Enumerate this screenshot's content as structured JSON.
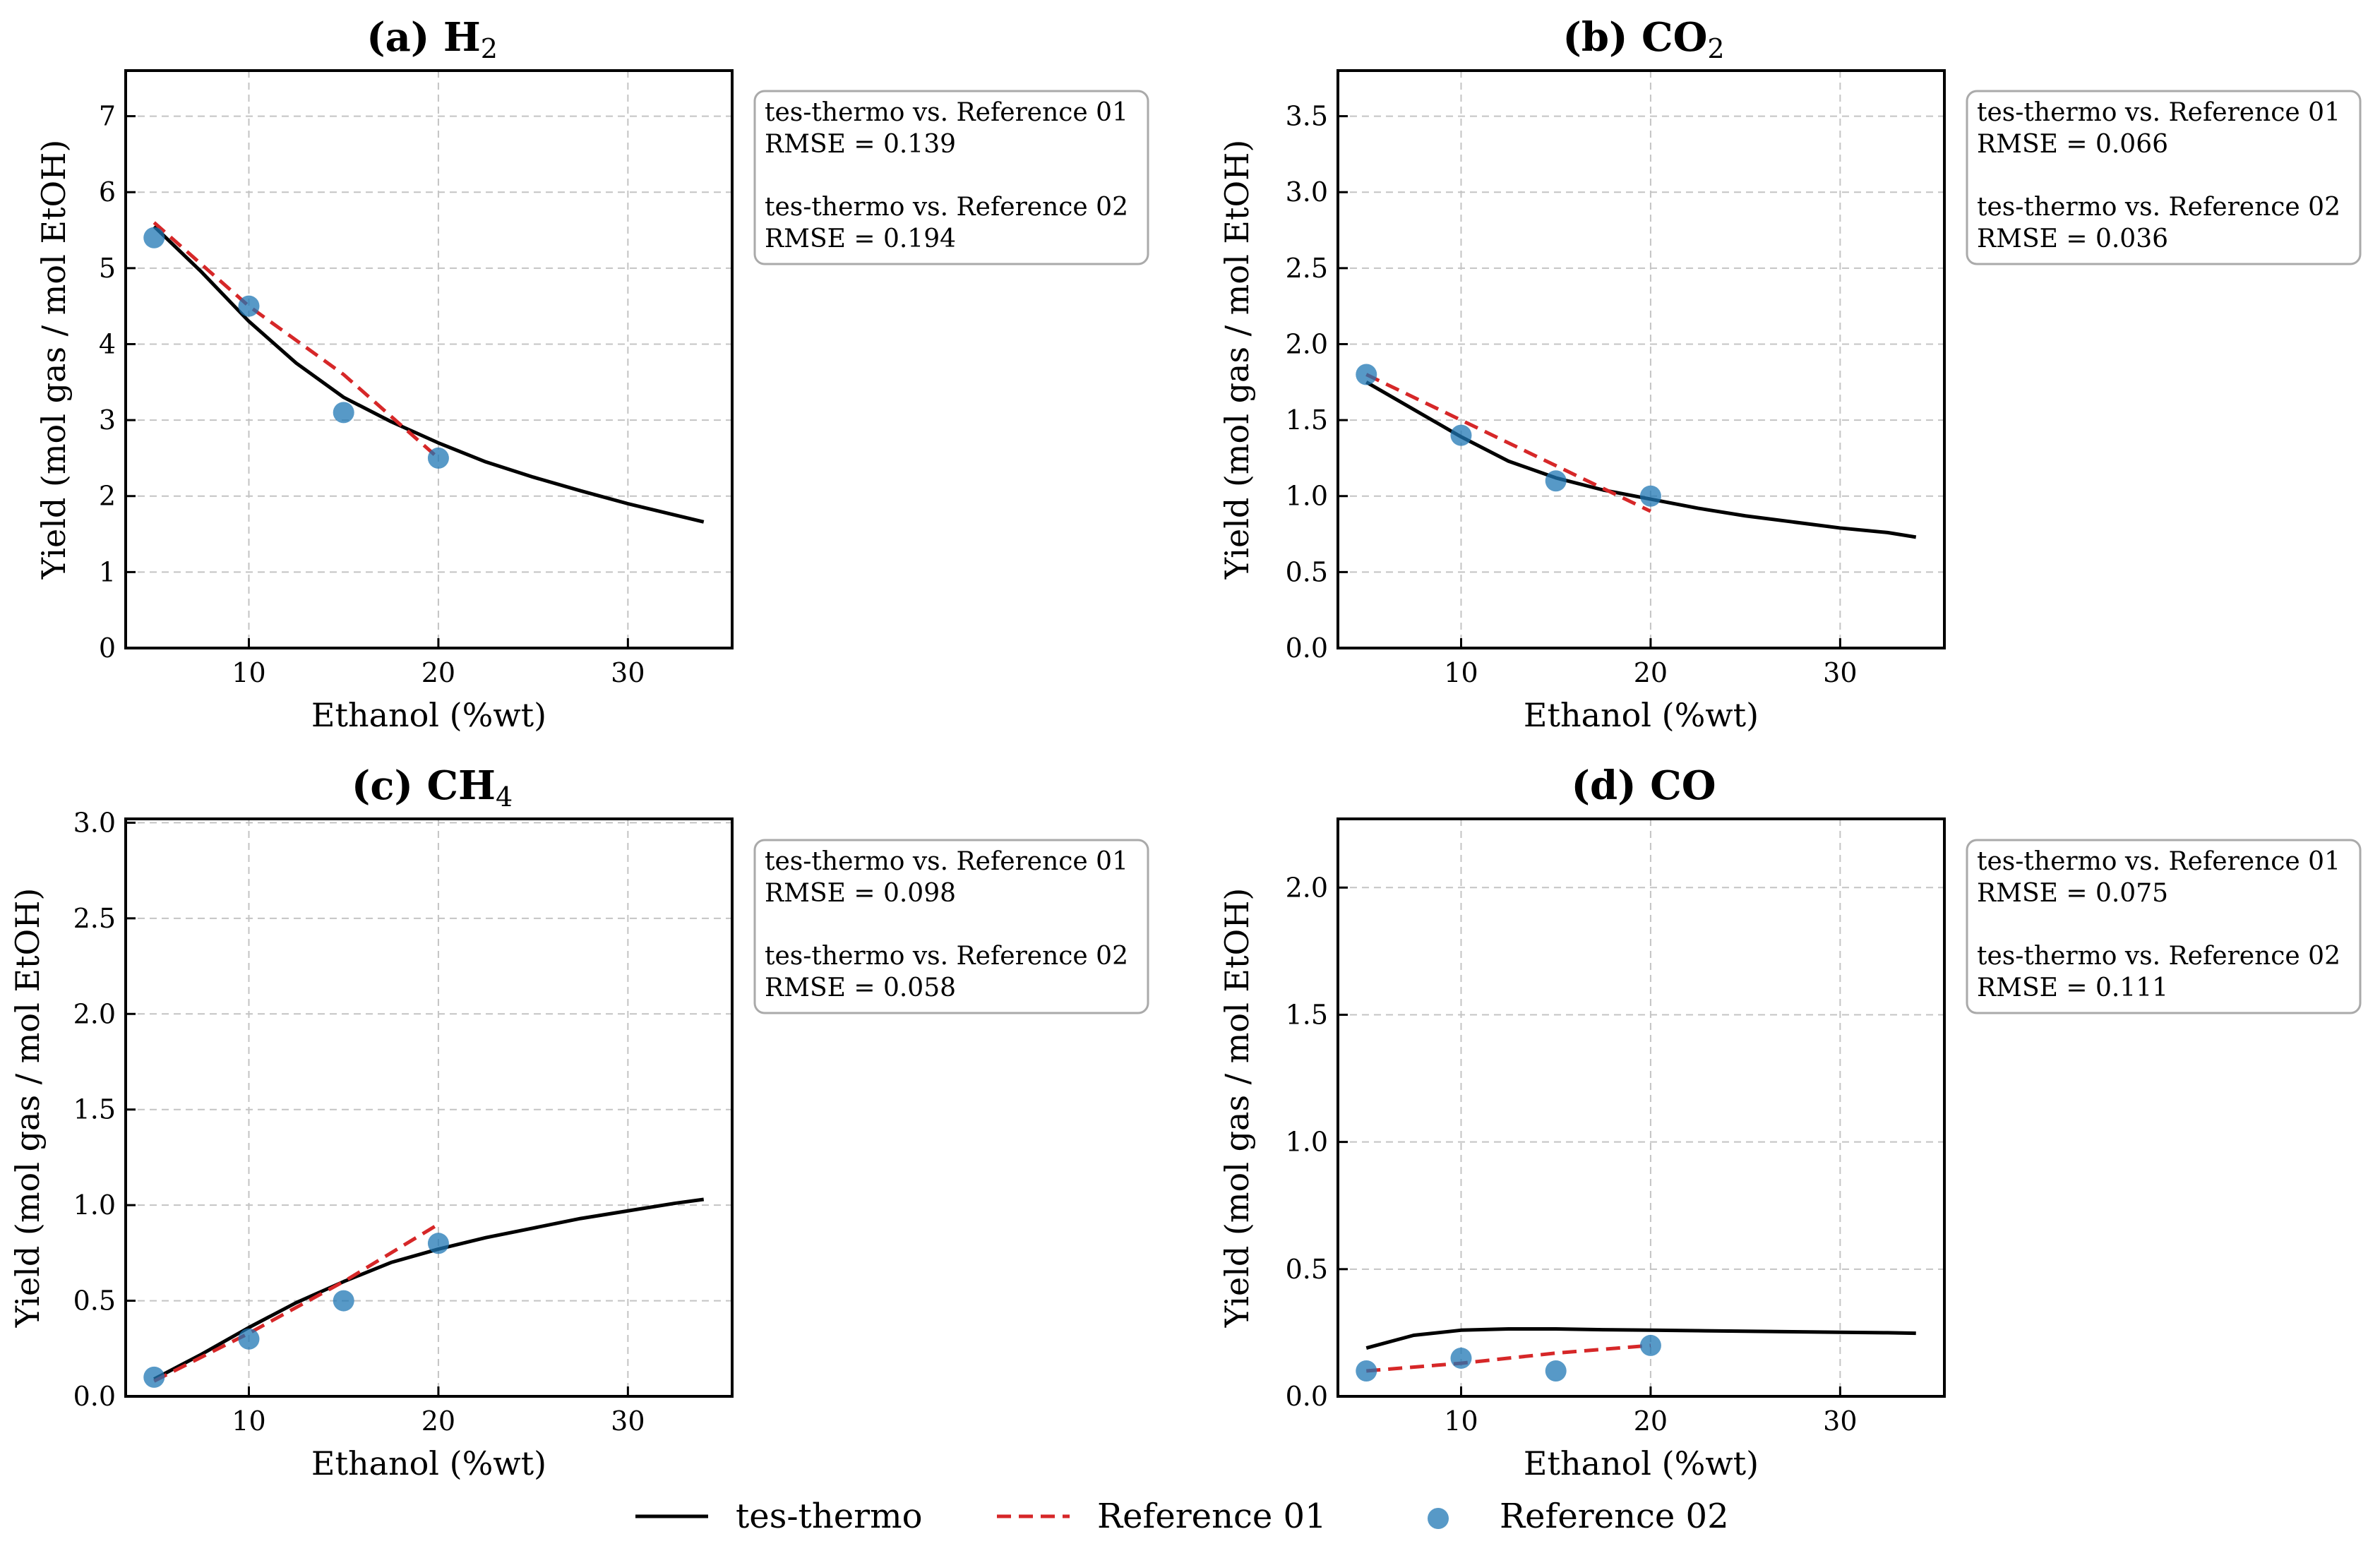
{
  "chart_data": [
    {
      "type": "line",
      "title": "(a) H",
      "title_sub": "2",
      "xlabel": "Ethanol (%wt)",
      "ylabel": "Yield (mol gas / mol EtOH)",
      "xlim": [
        3.5,
        35.5
      ],
      "ylim": [
        0,
        7.6
      ],
      "xticks": [
        10,
        20,
        30
      ],
      "yticks": [
        0,
        1,
        2,
        3,
        4,
        5,
        6,
        7
      ],
      "grid": true,
      "series": [
        {
          "name": "tes-thermo",
          "x": [
            5,
            7.5,
            10,
            12.5,
            15,
            17.5,
            20,
            22.5,
            25,
            27.5,
            30,
            32.5,
            34
          ],
          "y": [
            5.55,
            4.95,
            4.3,
            3.75,
            3.3,
            2.98,
            2.7,
            2.45,
            2.25,
            2.07,
            1.9,
            1.75,
            1.66
          ]
        },
        {
          "name": "Reference 01",
          "x": [
            5,
            10,
            15,
            20
          ],
          "y": [
            5.6,
            4.5,
            3.6,
            2.5
          ]
        },
        {
          "name": "Reference 02",
          "x": [
            5,
            10,
            15,
            20
          ],
          "y": [
            5.4,
            4.5,
            3.1,
            2.5
          ]
        }
      ],
      "annotation": [
        "tes-thermo vs. Reference 01",
        "RMSE = 0.139",
        "tes-thermo vs. Reference 02",
        "RMSE = 0.194"
      ]
    },
    {
      "type": "line",
      "title": "(b) CO",
      "title_sub": "2",
      "xlabel": "Ethanol (%wt)",
      "ylabel": "Yield (mol gas / mol EtOH)",
      "xlim": [
        3.5,
        35.5
      ],
      "ylim": [
        0,
        3.8
      ],
      "xticks": [
        10,
        20,
        30
      ],
      "yticks": [
        "0.0",
        "0.5",
        "1.0",
        "1.5",
        "2.0",
        "2.5",
        "3.0",
        "3.5"
      ],
      "grid": true,
      "series": [
        {
          "name": "tes-thermo",
          "x": [
            5,
            7.5,
            10,
            12.5,
            15,
            17.5,
            20,
            22.5,
            25,
            27.5,
            30,
            32.5,
            34
          ],
          "y": [
            1.75,
            1.57,
            1.39,
            1.23,
            1.12,
            1.04,
            0.98,
            0.92,
            0.87,
            0.83,
            0.79,
            0.76,
            0.73
          ]
        },
        {
          "name": "Reference 01",
          "x": [
            5,
            10,
            15,
            20
          ],
          "y": [
            1.8,
            1.5,
            1.2,
            0.9
          ]
        },
        {
          "name": "Reference 02",
          "x": [
            5,
            10,
            15,
            20
          ],
          "y": [
            1.8,
            1.4,
            1.1,
            1.0
          ]
        }
      ],
      "annotation": [
        "tes-thermo vs. Reference 01",
        "RMSE = 0.066",
        "tes-thermo vs. Reference 02",
        "RMSE = 0.036"
      ]
    },
    {
      "type": "line",
      "title": "(c) CH",
      "title_sub": "4",
      "xlabel": "Ethanol (%wt)",
      "ylabel": "Yield (mol gas / mol EtOH)",
      "xlim": [
        3.5,
        35.5
      ],
      "ylim": [
        0,
        3.02
      ],
      "xticks": [
        10,
        20,
        30
      ],
      "yticks": [
        "0.0",
        "0.5",
        "1.0",
        "1.5",
        "2.0",
        "2.5",
        "3.0"
      ],
      "grid": true,
      "series": [
        {
          "name": "tes-thermo",
          "x": [
            5,
            7.5,
            10,
            12.5,
            15,
            17.5,
            20,
            22.5,
            25,
            27.5,
            30,
            32.5,
            34
          ],
          "y": [
            0.09,
            0.22,
            0.36,
            0.49,
            0.6,
            0.7,
            0.77,
            0.83,
            0.88,
            0.93,
            0.97,
            1.01,
            1.03
          ]
        },
        {
          "name": "Reference 01",
          "x": [
            5,
            10,
            15,
            20
          ],
          "y": [
            0.08,
            0.33,
            0.6,
            0.9
          ]
        },
        {
          "name": "Reference 02",
          "x": [
            5,
            10,
            15,
            20
          ],
          "y": [
            0.1,
            0.3,
            0.5,
            0.8
          ]
        }
      ],
      "annotation": [
        "tes-thermo vs. Reference 01",
        "RMSE = 0.098",
        "tes-thermo vs. Reference 02",
        "RMSE = 0.058"
      ]
    },
    {
      "type": "line",
      "title": "(d) CO",
      "title_sub": "",
      "xlabel": "Ethanol (%wt)",
      "ylabel": "Yield (mol gas / mol EtOH)",
      "xlim": [
        3.5,
        35.5
      ],
      "ylim": [
        0,
        2.27
      ],
      "xticks": [
        10,
        20,
        30
      ],
      "yticks": [
        "0.0",
        "0.5",
        "1.0",
        "1.5",
        "2.0"
      ],
      "grid": true,
      "series": [
        {
          "name": "tes-thermo",
          "x": [
            5,
            7.5,
            10,
            12.5,
            15,
            17.5,
            20,
            22.5,
            25,
            27.5,
            30,
            32.5,
            34
          ],
          "y": [
            0.19,
            0.24,
            0.26,
            0.265,
            0.265,
            0.262,
            0.26,
            0.258,
            0.256,
            0.254,
            0.252,
            0.25,
            0.248
          ]
        },
        {
          "name": "Reference 01",
          "x": [
            5,
            10,
            15,
            20
          ],
          "y": [
            0.1,
            0.13,
            0.17,
            0.2
          ]
        },
        {
          "name": "Reference 02",
          "x": [
            5,
            10,
            15,
            20
          ],
          "y": [
            0.1,
            0.15,
            0.1,
            0.2
          ]
        }
      ],
      "annotation": [
        "tes-thermo vs. Reference 01",
        "RMSE = 0.075",
        "tes-thermo vs. Reference 02",
        "RMSE = 0.111"
      ]
    }
  ],
  "legend": {
    "placement": "bottom-center",
    "items": [
      "tes-thermo",
      "Reference 01",
      "Reference 02"
    ]
  },
  "colors": {
    "tes-thermo": "#000000",
    "Reference 01": "#d62728",
    "Reference 02": "#1f77b4",
    "grid": "#c4c4c4",
    "annotation_box": "#aaaaaa"
  }
}
